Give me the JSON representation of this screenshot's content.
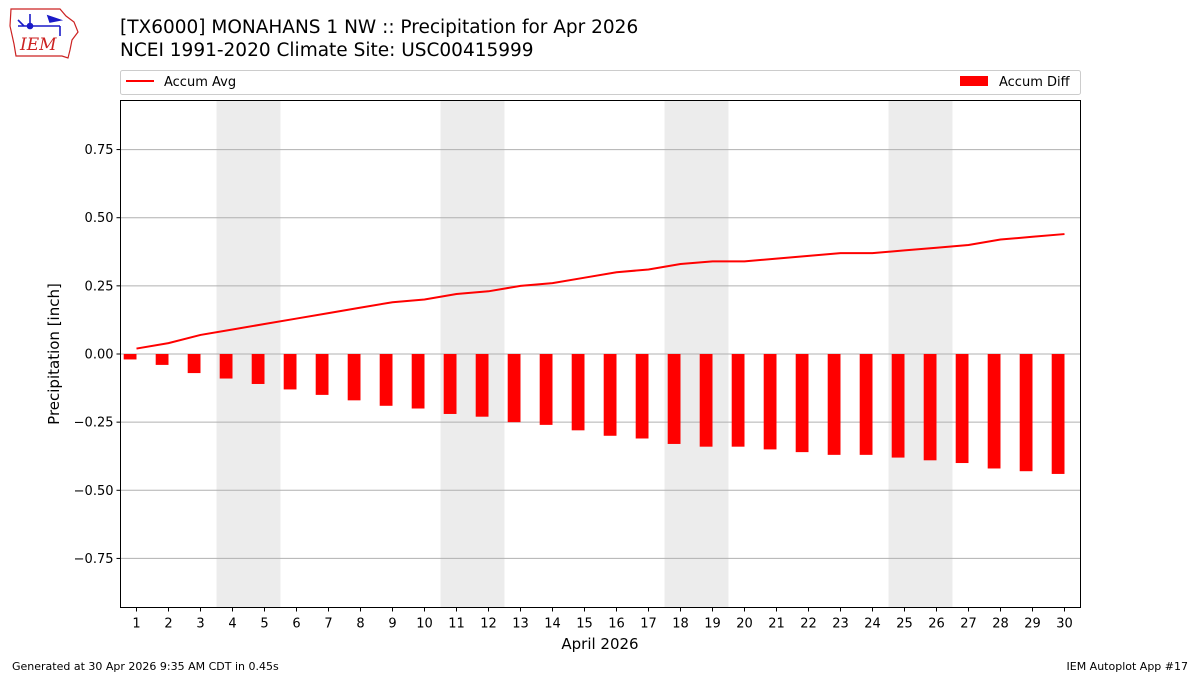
{
  "header": {
    "logo_text": "IEM",
    "title_line1": "[TX6000] MONAHANS 1 NW :: Precipitation for Apr 2026",
    "title_line2": "NCEI 1991-2020 Climate Site: USC00415999"
  },
  "footer": {
    "left": "Generated at 30 Apr 2026 9:35 AM CDT in 0.45s",
    "right": "IEM Autoplot App #17"
  },
  "colors": {
    "accum_avg": "#ff0000",
    "accum_diff": "#ff0000",
    "weekend_shade": "#ececec",
    "grid": "#b0b0b0",
    "logo_blue": "#1a1ac8",
    "logo_red": "#cc2222"
  },
  "chart_data": {
    "type": "bar",
    "xlabel": "April 2026",
    "ylabel": "Precipitation [inch]",
    "ylim": [
      -0.93,
      0.93
    ],
    "yticks": [
      -0.75,
      -0.5,
      -0.25,
      0.0,
      0.25,
      0.5,
      0.75
    ],
    "ytick_labels": [
      "−0.75",
      "−0.50",
      "−0.25",
      "0.00",
      "0.25",
      "0.50",
      "0.75"
    ],
    "xlim": [
      0.5,
      30.5
    ],
    "x": [
      1,
      2,
      3,
      4,
      5,
      6,
      7,
      8,
      9,
      10,
      11,
      12,
      13,
      14,
      15,
      16,
      17,
      18,
      19,
      20,
      21,
      22,
      23,
      24,
      25,
      26,
      27,
      28,
      29,
      30
    ],
    "grid": "horizontal",
    "shaded_weekends": [
      [
        4,
        5
      ],
      [
        11,
        12
      ],
      [
        18,
        19
      ],
      [
        25,
        26
      ]
    ],
    "legend": {
      "left": "top-left",
      "right": "top-right"
    },
    "series": [
      {
        "name": "Accum Avg",
        "type": "line",
        "values": [
          0.02,
          0.04,
          0.07,
          0.09,
          0.11,
          0.13,
          0.15,
          0.17,
          0.19,
          0.2,
          0.22,
          0.23,
          0.25,
          0.26,
          0.28,
          0.3,
          0.31,
          0.33,
          0.34,
          0.34,
          0.35,
          0.36,
          0.37,
          0.37,
          0.38,
          0.39,
          0.4,
          0.42,
          0.43,
          0.44
        ]
      },
      {
        "name": "Accum Diff",
        "type": "bar",
        "values": [
          -0.02,
          -0.04,
          -0.07,
          -0.09,
          -0.11,
          -0.13,
          -0.15,
          -0.17,
          -0.19,
          -0.2,
          -0.22,
          -0.23,
          -0.25,
          -0.26,
          -0.28,
          -0.3,
          -0.31,
          -0.33,
          -0.34,
          -0.34,
          -0.35,
          -0.36,
          -0.37,
          -0.37,
          -0.38,
          -0.39,
          -0.4,
          -0.42,
          -0.43,
          -0.44
        ]
      }
    ]
  }
}
